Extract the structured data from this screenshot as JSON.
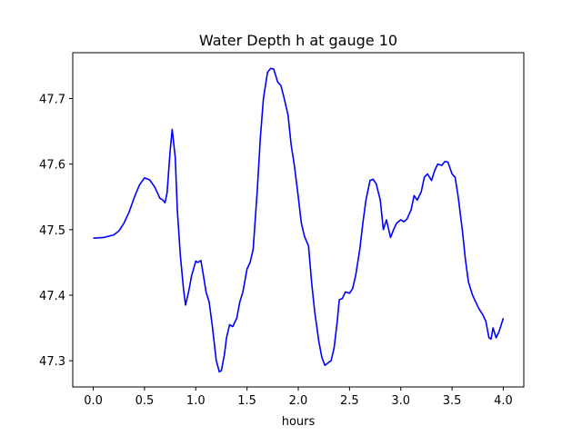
{
  "chart_data": {
    "type": "line",
    "title": "Water Depth h at gauge 10",
    "xlabel": "hours",
    "ylabel": "",
    "xlim": [
      -0.2,
      4.2
    ],
    "ylim": [
      47.26,
      47.77
    ],
    "grid": false,
    "legend": "none",
    "xticks": [
      0.0,
      0.5,
      1.0,
      1.5,
      2.0,
      2.5,
      3.0,
      3.5,
      4.0
    ],
    "xtick_labels": [
      "0.0",
      "0.5",
      "1.0",
      "1.5",
      "2.0",
      "2.5",
      "3.0",
      "3.5",
      "4.0"
    ],
    "yticks": [
      47.3,
      47.4,
      47.5,
      47.6,
      47.7
    ],
    "ytick_labels": [
      "47.3",
      "47.4",
      "47.5",
      "47.6",
      "47.7"
    ],
    "series": [
      {
        "color": "#0000ff",
        "x": [
          0.0,
          0.1,
          0.2,
          0.25,
          0.3,
          0.35,
          0.4,
          0.45,
          0.5,
          0.55,
          0.6,
          0.65,
          0.68,
          0.7,
          0.72,
          0.75,
          0.77,
          0.8,
          0.82,
          0.85,
          0.88,
          0.9,
          0.93,
          0.96,
          1.0,
          1.02,
          1.05,
          1.08,
          1.1,
          1.13,
          1.16,
          1.2,
          1.23,
          1.25,
          1.28,
          1.3,
          1.33,
          1.36,
          1.4,
          1.43,
          1.46,
          1.5,
          1.53,
          1.56,
          1.6,
          1.63,
          1.66,
          1.7,
          1.73,
          1.76,
          1.8,
          1.83,
          1.86,
          1.9,
          1.93,
          1.96,
          2.0,
          2.03,
          2.06,
          2.1,
          2.13,
          2.16,
          2.2,
          2.23,
          2.26,
          2.3,
          2.32,
          2.35,
          2.38,
          2.4,
          2.43,
          2.46,
          2.5,
          2.53,
          2.56,
          2.6,
          2.63,
          2.66,
          2.7,
          2.73,
          2.76,
          2.8,
          2.83,
          2.86,
          2.9,
          2.93,
          2.96,
          3.0,
          3.03,
          3.06,
          3.1,
          3.13,
          3.16,
          3.2,
          3.23,
          3.26,
          3.3,
          3.33,
          3.36,
          3.4,
          3.43,
          3.46,
          3.5,
          3.53,
          3.56,
          3.6,
          3.63,
          3.66,
          3.7,
          3.73,
          3.76,
          3.8,
          3.83,
          3.86,
          3.88,
          3.9,
          3.93,
          3.96,
          4.0
        ],
        "y": [
          47.487,
          47.488,
          47.492,
          47.498,
          47.51,
          47.527,
          47.549,
          47.568,
          47.579,
          47.576,
          47.565,
          47.548,
          47.545,
          47.541,
          47.556,
          47.62,
          47.653,
          47.61,
          47.53,
          47.46,
          47.41,
          47.385,
          47.405,
          47.43,
          47.452,
          47.45,
          47.453,
          47.425,
          47.405,
          47.39,
          47.355,
          47.3,
          47.283,
          47.285,
          47.31,
          47.335,
          47.355,
          47.352,
          47.365,
          47.39,
          47.405,
          47.44,
          47.45,
          47.47,
          47.56,
          47.64,
          47.7,
          47.74,
          47.746,
          47.745,
          47.725,
          47.72,
          47.702,
          47.675,
          47.63,
          47.6,
          47.55,
          47.51,
          47.49,
          47.475,
          47.42,
          47.375,
          47.33,
          47.305,
          47.293,
          47.298,
          47.3,
          47.32,
          47.36,
          47.393,
          47.395,
          47.405,
          47.403,
          47.41,
          47.43,
          47.47,
          47.51,
          47.545,
          47.575,
          47.577,
          47.57,
          47.545,
          47.5,
          47.515,
          47.488,
          47.5,
          47.51,
          47.515,
          47.512,
          47.516,
          47.53,
          47.552,
          47.545,
          47.558,
          47.58,
          47.585,
          47.575,
          47.59,
          47.6,
          47.598,
          47.604,
          47.603,
          47.585,
          47.58,
          47.55,
          47.5,
          47.455,
          47.42,
          47.4,
          47.39,
          47.38,
          47.37,
          47.36,
          47.335,
          47.333,
          47.35,
          47.335,
          47.345,
          47.365
        ]
      }
    ]
  }
}
